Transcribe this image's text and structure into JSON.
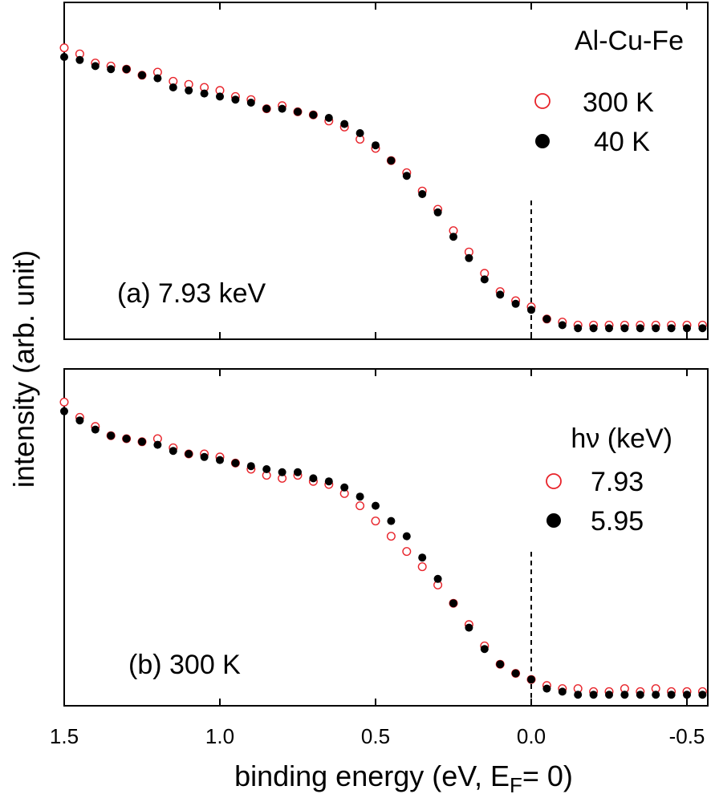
{
  "figure": {
    "ylabel": "intensity (arb. unit)",
    "xlabel_main": "binding energy (eV, E",
    "xlabel_sub": "F",
    "xlabel_tail": "= 0)",
    "x_ticks": [
      "1.5",
      "1.0",
      "0.5",
      "0.0",
      "-0.5"
    ]
  },
  "chart_data": [
    {
      "type": "scatter",
      "panel": "a",
      "annotation": "(a) 7.93 keV",
      "legend_title": "Al-Cu-Fe",
      "legend_placement": "top-right",
      "xlabel": "binding energy (eV, E_F= 0)",
      "ylabel": "intensity (arb. unit)",
      "xlim": [
        1.5,
        -0.57
      ],
      "x_reversed": true,
      "ylim": [
        0,
        1
      ],
      "fermi_level_line": 0.0,
      "x_ticks": [
        1.5,
        1.0,
        0.5,
        0.0,
        -0.5
      ],
      "series": [
        {
          "name": "300 K",
          "marker": "open-circle",
          "color": "#e8232a",
          "x": [
            1.5,
            1.45,
            1.4,
            1.35,
            1.3,
            1.25,
            1.2,
            1.15,
            1.1,
            1.05,
            1.0,
            0.95,
            0.9,
            0.85,
            0.8,
            0.75,
            0.7,
            0.65,
            0.6,
            0.55,
            0.5,
            0.45,
            0.4,
            0.35,
            0.3,
            0.25,
            0.2,
            0.15,
            0.1,
            0.05,
            0.0,
            -0.05,
            -0.1,
            -0.15,
            -0.2,
            -0.25,
            -0.3,
            -0.35,
            -0.4,
            -0.45,
            -0.5,
            -0.55
          ],
          "y": [
            0.93,
            0.91,
            0.88,
            0.87,
            0.86,
            0.84,
            0.85,
            0.82,
            0.81,
            0.8,
            0.79,
            0.77,
            0.76,
            0.73,
            0.74,
            0.72,
            0.71,
            0.69,
            0.67,
            0.63,
            0.6,
            0.56,
            0.52,
            0.46,
            0.4,
            0.33,
            0.26,
            0.19,
            0.13,
            0.1,
            0.08,
            0.04,
            0.03,
            0.02,
            0.02,
            0.02,
            0.02,
            0.02,
            0.02,
            0.02,
            0.02,
            0.02
          ]
        },
        {
          "name": "40 K",
          "marker": "filled-circle",
          "color": "#000000",
          "x": [
            1.5,
            1.45,
            1.4,
            1.35,
            1.3,
            1.25,
            1.2,
            1.15,
            1.1,
            1.05,
            1.0,
            0.95,
            0.9,
            0.85,
            0.8,
            0.75,
            0.7,
            0.65,
            0.6,
            0.55,
            0.5,
            0.45,
            0.4,
            0.35,
            0.3,
            0.25,
            0.2,
            0.15,
            0.1,
            0.05,
            0.0,
            -0.05,
            -0.1,
            -0.15,
            -0.2,
            -0.25,
            -0.3,
            -0.35,
            -0.4,
            -0.45,
            -0.5,
            -0.55
          ],
          "y": [
            0.9,
            0.89,
            0.87,
            0.86,
            0.86,
            0.84,
            0.83,
            0.8,
            0.79,
            0.78,
            0.77,
            0.76,
            0.75,
            0.73,
            0.73,
            0.72,
            0.71,
            0.7,
            0.68,
            0.65,
            0.61,
            0.56,
            0.51,
            0.45,
            0.39,
            0.31,
            0.24,
            0.17,
            0.12,
            0.09,
            0.07,
            0.04,
            0.02,
            0.01,
            0.01,
            0.01,
            0.01,
            0.01,
            0.01,
            0.01,
            0.01,
            0.01
          ]
        }
      ]
    },
    {
      "type": "scatter",
      "panel": "b",
      "annotation": "(b) 300 K",
      "legend_title": "hν (keV)",
      "legend_placement": "top-right",
      "xlabel": "binding energy (eV, E_F= 0)",
      "ylabel": "intensity (arb. unit)",
      "xlim": [
        1.5,
        -0.57
      ],
      "x_reversed": true,
      "ylim": [
        0,
        1
      ],
      "fermi_level_line": 0.0,
      "x_ticks": [
        1.5,
        1.0,
        0.5,
        0.0,
        -0.5
      ],
      "series": [
        {
          "name": "7.93",
          "marker": "open-circle",
          "color": "#e8232a",
          "x": [
            1.5,
            1.45,
            1.4,
            1.35,
            1.3,
            1.25,
            1.2,
            1.15,
            1.1,
            1.05,
            1.0,
            0.95,
            0.9,
            0.85,
            0.8,
            0.75,
            0.7,
            0.65,
            0.6,
            0.55,
            0.5,
            0.45,
            0.4,
            0.35,
            0.3,
            0.25,
            0.2,
            0.15,
            0.1,
            0.05,
            0.0,
            -0.05,
            -0.1,
            -0.15,
            -0.2,
            -0.25,
            -0.3,
            -0.35,
            -0.4,
            -0.45,
            -0.5,
            -0.55
          ],
          "y": [
            0.97,
            0.92,
            0.89,
            0.86,
            0.85,
            0.84,
            0.85,
            0.82,
            0.8,
            0.8,
            0.79,
            0.77,
            0.75,
            0.73,
            0.72,
            0.73,
            0.71,
            0.7,
            0.67,
            0.63,
            0.58,
            0.53,
            0.48,
            0.43,
            0.37,
            0.31,
            0.24,
            0.17,
            0.11,
            0.08,
            0.06,
            0.04,
            0.03,
            0.03,
            0.02,
            0.02,
            0.03,
            0.02,
            0.03,
            0.02,
            0.02,
            0.02
          ]
        },
        {
          "name": "5.95",
          "marker": "filled-circle",
          "color": "#000000",
          "x": [
            1.5,
            1.45,
            1.4,
            1.35,
            1.3,
            1.25,
            1.2,
            1.15,
            1.1,
            1.05,
            1.0,
            0.95,
            0.9,
            0.85,
            0.8,
            0.75,
            0.7,
            0.65,
            0.6,
            0.55,
            0.5,
            0.45,
            0.4,
            0.35,
            0.3,
            0.25,
            0.2,
            0.15,
            0.1,
            0.05,
            0.0,
            -0.05,
            -0.1,
            -0.15,
            -0.2,
            -0.25,
            -0.3,
            -0.35,
            -0.4,
            -0.45,
            -0.5,
            -0.55
          ],
          "y": [
            0.94,
            0.91,
            0.88,
            0.86,
            0.85,
            0.84,
            0.83,
            0.81,
            0.8,
            0.79,
            0.78,
            0.77,
            0.76,
            0.75,
            0.74,
            0.74,
            0.72,
            0.71,
            0.69,
            0.66,
            0.63,
            0.58,
            0.53,
            0.46,
            0.39,
            0.31,
            0.23,
            0.16,
            0.11,
            0.08,
            0.06,
            0.03,
            0.02,
            0.01,
            0.01,
            0.01,
            0.01,
            0.01,
            0.01,
            0.01,
            0.01,
            0.01
          ]
        }
      ]
    }
  ]
}
